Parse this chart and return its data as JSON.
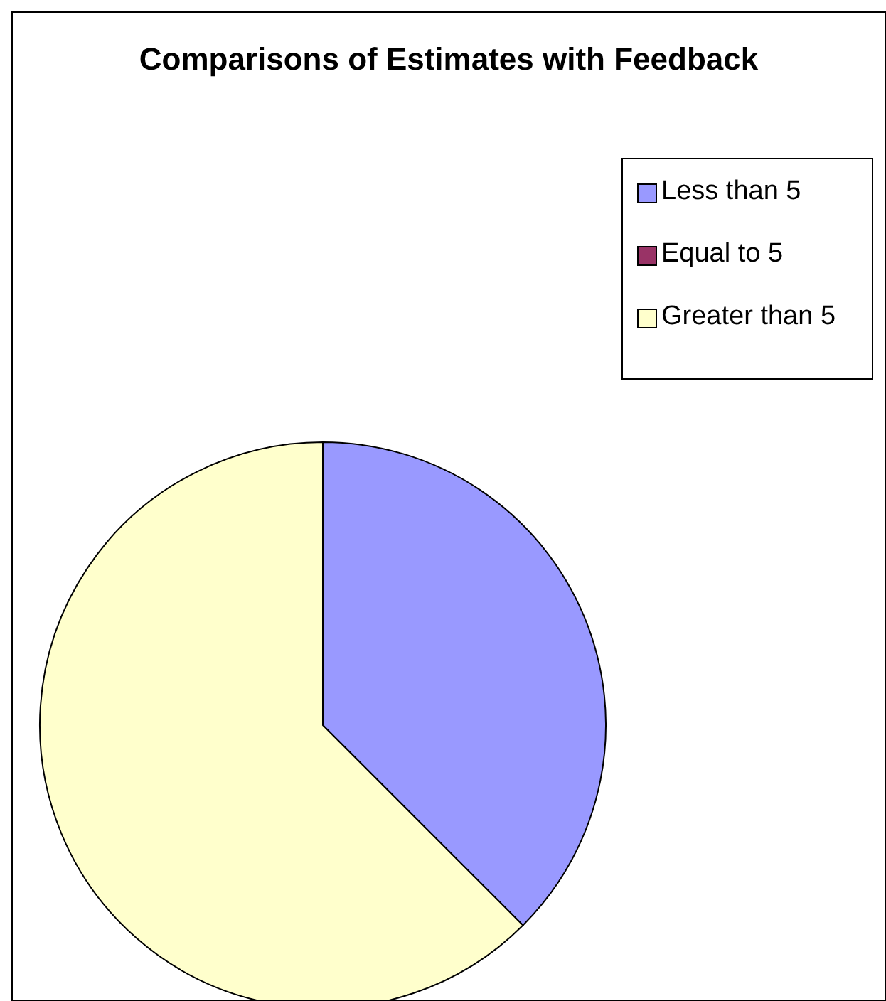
{
  "chart_data": {
    "type": "pie",
    "title": "Comparisons of Estimates with Feedback",
    "categories": [
      "Less than 5",
      "Equal to 5",
      "Greater than 5"
    ],
    "values": [
      37.5,
      0,
      62.5
    ],
    "colors": [
      "#9999ff",
      "#993366",
      "#ffffcc"
    ],
    "legend": "top right"
  }
}
